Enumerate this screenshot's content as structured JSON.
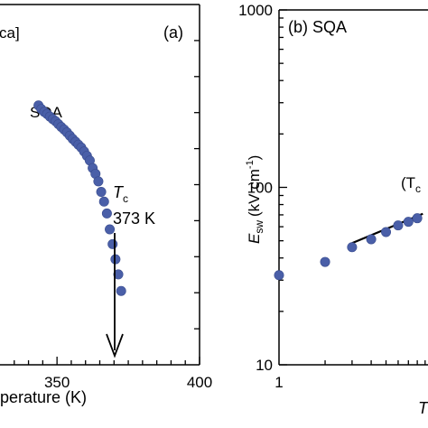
{
  "colors": {
    "marker": "#4a5fa8",
    "marker_stroke": "#3a4d8f",
    "axis": "#000000",
    "fit_line": "#000000"
  },
  "chart_data": [
    {
      "type": "scatter",
      "panel_label": "(a)",
      "legend_fragment": "ca]",
      "series_label": "SQA",
      "xlabel_visible": "perature (K)",
      "x_ticks": [
        350,
        400
      ],
      "x_tick_labels": [
        "350",
        "400"
      ],
      "xlim": [
        330,
        400
      ],
      "ylim": [
        0,
        100
      ],
      "annotation": {
        "symbol": "T",
        "subscript": "c",
        "value_text": "373 K",
        "arrow_x": 375
      },
      "points": [
        {
          "x": 343.5,
          "y": 72.0
        },
        {
          "x": 344.5,
          "y": 71.0
        },
        {
          "x": 345.5,
          "y": 70.2
        },
        {
          "x": 346.5,
          "y": 69.6
        },
        {
          "x": 347.5,
          "y": 68.9
        },
        {
          "x": 348.5,
          "y": 68.2
        },
        {
          "x": 349.5,
          "y": 67.6
        },
        {
          "x": 350.5,
          "y": 66.8
        },
        {
          "x": 351.5,
          "y": 66.0
        },
        {
          "x": 352.5,
          "y": 65.3
        },
        {
          "x": 353.5,
          "y": 64.5
        },
        {
          "x": 354.5,
          "y": 63.6
        },
        {
          "x": 355.5,
          "y": 62.7
        },
        {
          "x": 356.5,
          "y": 61.9
        },
        {
          "x": 357.5,
          "y": 61.1
        },
        {
          "x": 358.5,
          "y": 60.3
        },
        {
          "x": 359.5,
          "y": 59.2
        },
        {
          "x": 360.5,
          "y": 58.0
        },
        {
          "x": 361.5,
          "y": 56.7
        },
        {
          "x": 362.5,
          "y": 54.6
        },
        {
          "x": 363.5,
          "y": 53.0
        },
        {
          "x": 364.5,
          "y": 50.9
        },
        {
          "x": 365.5,
          "y": 48.0
        },
        {
          "x": 366.5,
          "y": 45.3
        },
        {
          "x": 367.5,
          "y": 42.0
        },
        {
          "x": 368.5,
          "y": 37.6
        },
        {
          "x": 369.5,
          "y": 33.5
        },
        {
          "x": 370.5,
          "y": 29.3
        },
        {
          "x": 371.5,
          "y": 25.1
        },
        {
          "x": 372.5,
          "y": 20.5
        }
      ]
    },
    {
      "type": "scatter",
      "panel_label": "(b) SQA",
      "scale": "log-log",
      "ylabel_main": "E",
      "ylabel_sub": "sw",
      "ylabel_units": "(kV cm",
      "ylabel_sup": "-1",
      "ylabel_close": ")",
      "y_ticks": [
        10,
        100,
        1000
      ],
      "y_tick_labels": [
        "10",
        "100",
        "1000"
      ],
      "ylim": [
        10,
        1000
      ],
      "x_ticks": [
        1
      ],
      "x_tick_labels": [
        "1"
      ],
      "xlim": [
        1,
        9.4
      ],
      "xlabel_fragment": "T",
      "annotation_fragment": "(T",
      "annotation_sub": "c",
      "points": [
        {
          "x": 1.0,
          "y": 32
        },
        {
          "x": 2.0,
          "y": 38
        },
        {
          "x": 3.0,
          "y": 46
        },
        {
          "x": 4.0,
          "y": 51
        },
        {
          "x": 5.0,
          "y": 56
        },
        {
          "x": 6.0,
          "y": 61
        },
        {
          "x": 7.0,
          "y": 64
        },
        {
          "x": 8.0,
          "y": 67
        }
      ],
      "fit_line": {
        "x": [
          3.0,
          8.7
        ],
        "y": [
          48.5,
          71
        ]
      }
    }
  ]
}
